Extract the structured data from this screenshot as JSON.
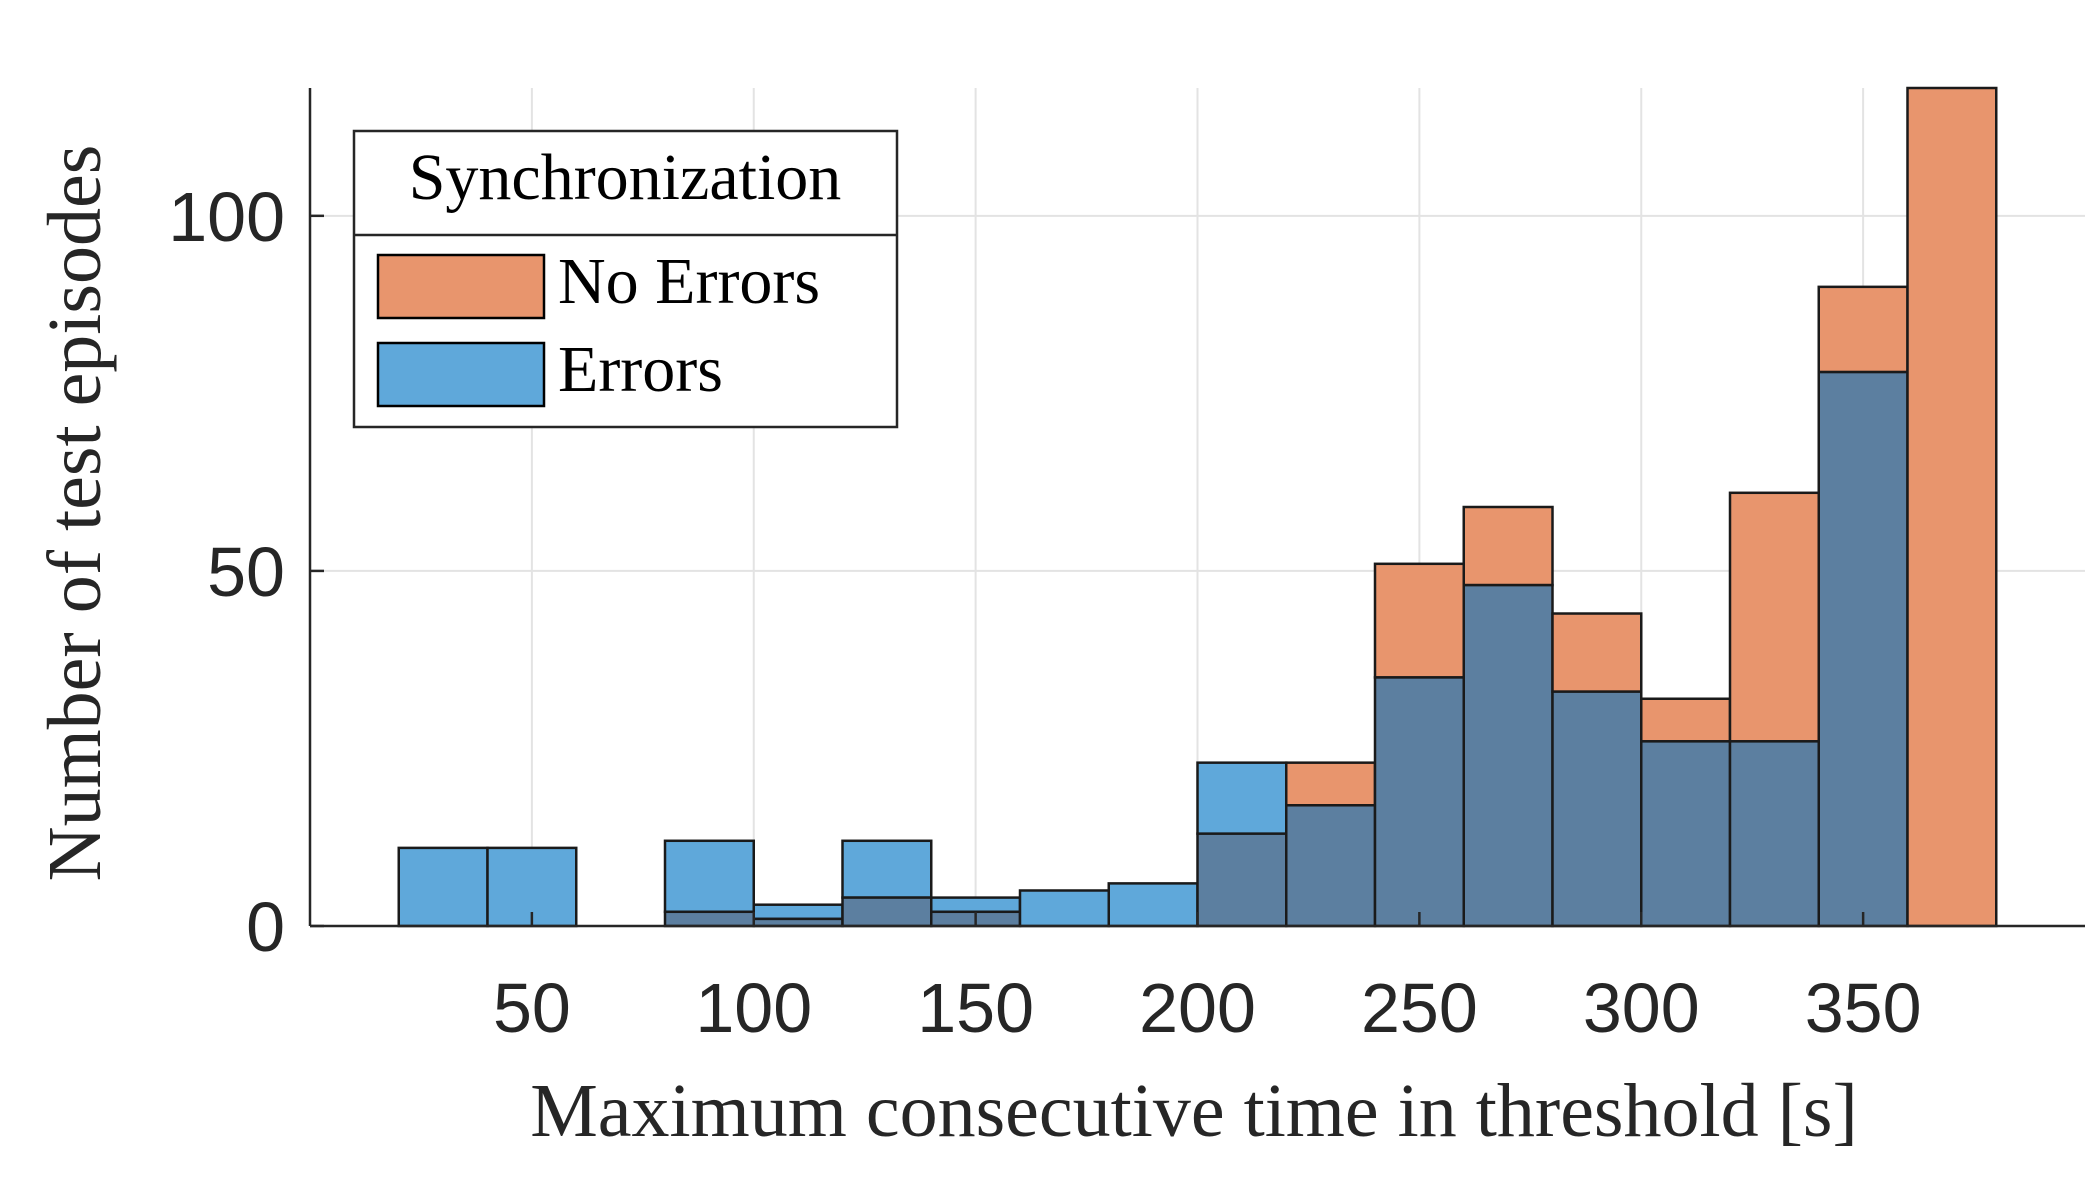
{
  "chart_data": {
    "type": "histogram",
    "xlabel": "Maximum consecutive time in threshold [s]",
    "ylabel": "Number of test episodes",
    "xlim": [
      0,
      400
    ],
    "ylim": [
      0,
      118
    ],
    "xticks": [
      50,
      100,
      150,
      200,
      250,
      300,
      350
    ],
    "yticks": [
      0,
      50,
      100
    ],
    "grid": true,
    "bin_edges": [
      20,
      40,
      60,
      80,
      100,
      120,
      140,
      160,
      180,
      200,
      220,
      240,
      260,
      280,
      300,
      320,
      340,
      360,
      380
    ],
    "legend": {
      "title": "Synchronization",
      "placement": "top-left"
    },
    "series": [
      {
        "name": "No Errors",
        "color": "#E8956D",
        "values": [
          0,
          0,
          0,
          2,
          1,
          4,
          2,
          0,
          0,
          13,
          23,
          51,
          59,
          44,
          32,
          61,
          90,
          118
        ]
      },
      {
        "name": "Errors",
        "color": "#5FA8DA",
        "values": [
          11,
          11,
          0,
          12,
          3,
          12,
          4,
          5,
          6,
          23,
          17,
          35,
          48,
          33,
          26,
          26,
          78,
          0
        ]
      }
    ],
    "overlap_color": "#5C7FA0"
  }
}
